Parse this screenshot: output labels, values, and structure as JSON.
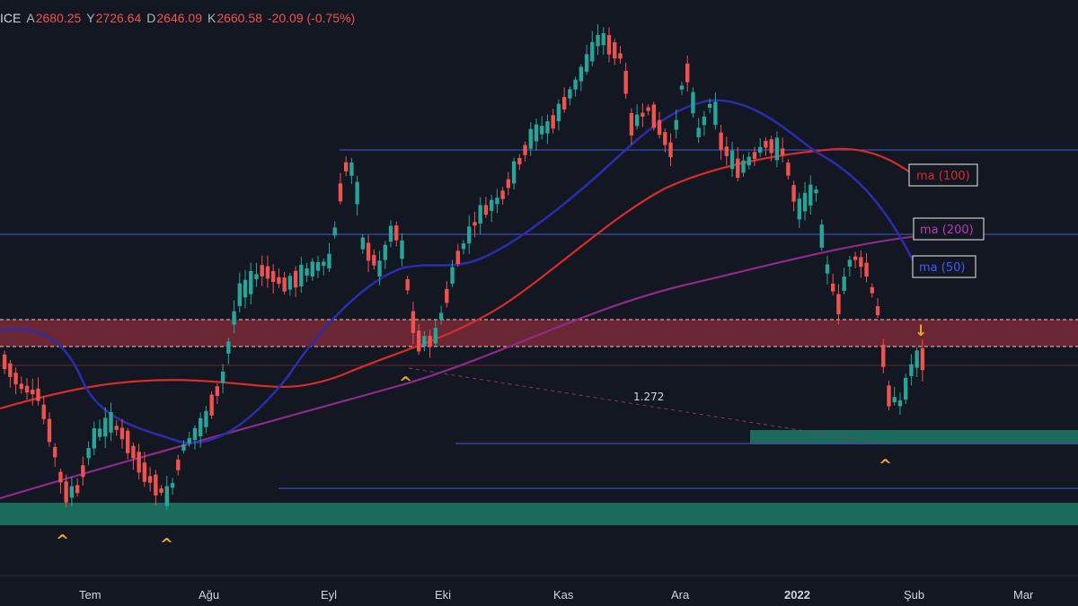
{
  "header": {
    "symbol_fragment": "ICE",
    "open_label": "A",
    "open": "2680.25",
    "high_label": "Y",
    "high": "2726.64",
    "low_label": "D",
    "low": "2646.09",
    "close_label": "K",
    "close": "2660.58",
    "change": "-20.09 (-0.75%)"
  },
  "colors": {
    "background": "#131722",
    "bull": "#26a69a",
    "bear": "#ef5350",
    "ma50": "#2c2ca8",
    "ma100": "#d92b2b",
    "ma200": "#8e2a88",
    "resistance_zone": "#7a2a36",
    "support_zone": "#1b6b5c",
    "level_line": "#3b4bb0",
    "arrow": "#f5a623"
  },
  "chart_data": {
    "type": "candlestick",
    "x_ticks": [
      "Tem",
      "Ağu",
      "Eyl",
      "Eki",
      "Kas",
      "Ara",
      "2022",
      "Şub",
      "Mar"
    ],
    "bold_tick": "2022",
    "legend": [
      {
        "label": "ma (100)",
        "color": "#d92b2b"
      },
      {
        "label": "ma (200)",
        "color": "#b040b0"
      },
      {
        "label": "ma (50)",
        "color": "#3d5afe"
      }
    ],
    "annotations": {
      "fib_label": "1.272",
      "pivot_markers": [
        "^",
        "^",
        "^",
        "^"
      ],
      "down_marker": "↓"
    },
    "candle_count": 165,
    "seed": 7
  }
}
